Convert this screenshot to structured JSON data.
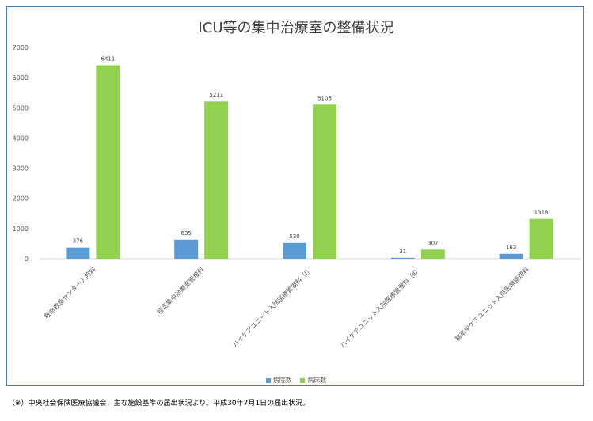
{
  "chart_data": {
    "type": "bar",
    "title": "ICU等の集中治療室の整備状況",
    "categories": [
      "救命救急センター入院料",
      "特定集中治療室管理料",
      "ハイケアユニット入院医療管理料（Ⅰ）",
      "ハイケアユニット入院医療管理料（Ⅱ）",
      "脳卒中ケアユニット入院医療管理料"
    ],
    "series": [
      {
        "name": "病院数",
        "values": [
          376,
          635,
          530,
          31,
          163
        ],
        "color": "#5b9bd5"
      },
      {
        "name": "病床数",
        "values": [
          6411,
          5211,
          5105,
          307,
          1318
        ],
        "color": "#92d050"
      }
    ],
    "ylim": [
      0,
      7000
    ],
    "yticks": [
      0,
      1000,
      2000,
      3000,
      4000,
      5000,
      6000,
      7000
    ],
    "grid": false,
    "legend": "bottom"
  },
  "footnote": "（※）中央社会保険医療協議会、主な施設基準の届出状況より。平成30年7月1日の届出状況。"
}
